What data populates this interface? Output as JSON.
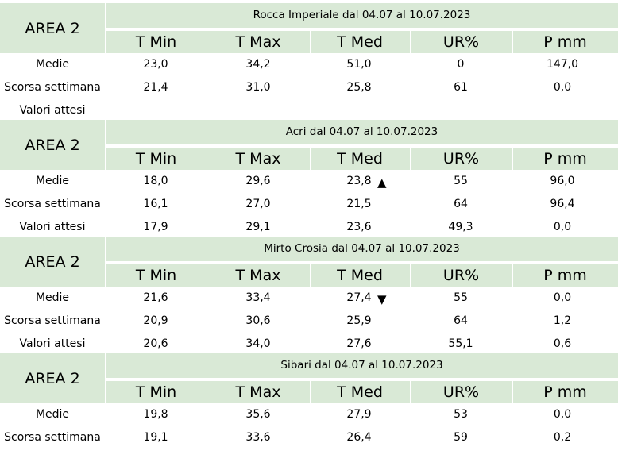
{
  "columns": [
    "T Min",
    "T Max",
    "T Med",
    "UR%",
    "P mm"
  ],
  "blocks": [
    {
      "area": "AREA 2",
      "title": "Rocca Imperiale  dal 04.07 al 10.07.2023",
      "rows": [
        {
          "label": "Medie",
          "values": [
            "23,0",
            "34,2",
            "51,0",
            "0",
            "147,0"
          ],
          "trend": ""
        },
        {
          "label": "Scorsa settimana",
          "values": [
            "21,4",
            "31,0",
            "25,8",
            "61",
            "0,0"
          ],
          "trend": ""
        },
        {
          "label": "Valori attesi",
          "values": [
            "",
            "",
            "",
            "",
            ""
          ],
          "trend": ""
        }
      ]
    },
    {
      "area": "AREA 2",
      "title": "Acri dal 04.07 al 10.07.2023",
      "rows": [
        {
          "label": "Medie",
          "values": [
            "18,0",
            "29,6",
            "23,8",
            "55",
            "96,0"
          ],
          "trend": "▲"
        },
        {
          "label": "Scorsa settimana",
          "values": [
            "16,1",
            "27,0",
            "21,5",
            "64",
            "96,4"
          ],
          "trend": ""
        },
        {
          "label": "Valori attesi",
          "values": [
            "17,9",
            "29,1",
            "23,6",
            "49,3",
            "0,0"
          ],
          "trend": ""
        }
      ]
    },
    {
      "area": "AREA 2",
      "title": "Mirto Crosia dal 04.07 al 10.07.2023",
      "rows": [
        {
          "label": "Medie",
          "values": [
            "21,6",
            "33,4",
            "27,4",
            "55",
            "0,0"
          ],
          "trend": "▼"
        },
        {
          "label": "Scorsa settimana",
          "values": [
            "20,9",
            "30,6",
            "25,9",
            "64",
            "1,2"
          ],
          "trend": ""
        },
        {
          "label": "Valori attesi",
          "values": [
            "20,6",
            "34,0",
            "27,6",
            "55,1",
            "0,6"
          ],
          "trend": ""
        }
      ]
    },
    {
      "area": "AREA 2",
      "title": "Sibari dal 04.07 al 10.07.2023",
      "rows": [
        {
          "label": "Medie",
          "values": [
            "19,8",
            "35,6",
            "27,9",
            "53",
            "0,0"
          ],
          "trend": ""
        },
        {
          "label": "Scorsa settimana",
          "values": [
            "19,1",
            "33,6",
            "26,4",
            "59",
            "0,2"
          ],
          "trend": ""
        }
      ]
    }
  ]
}
